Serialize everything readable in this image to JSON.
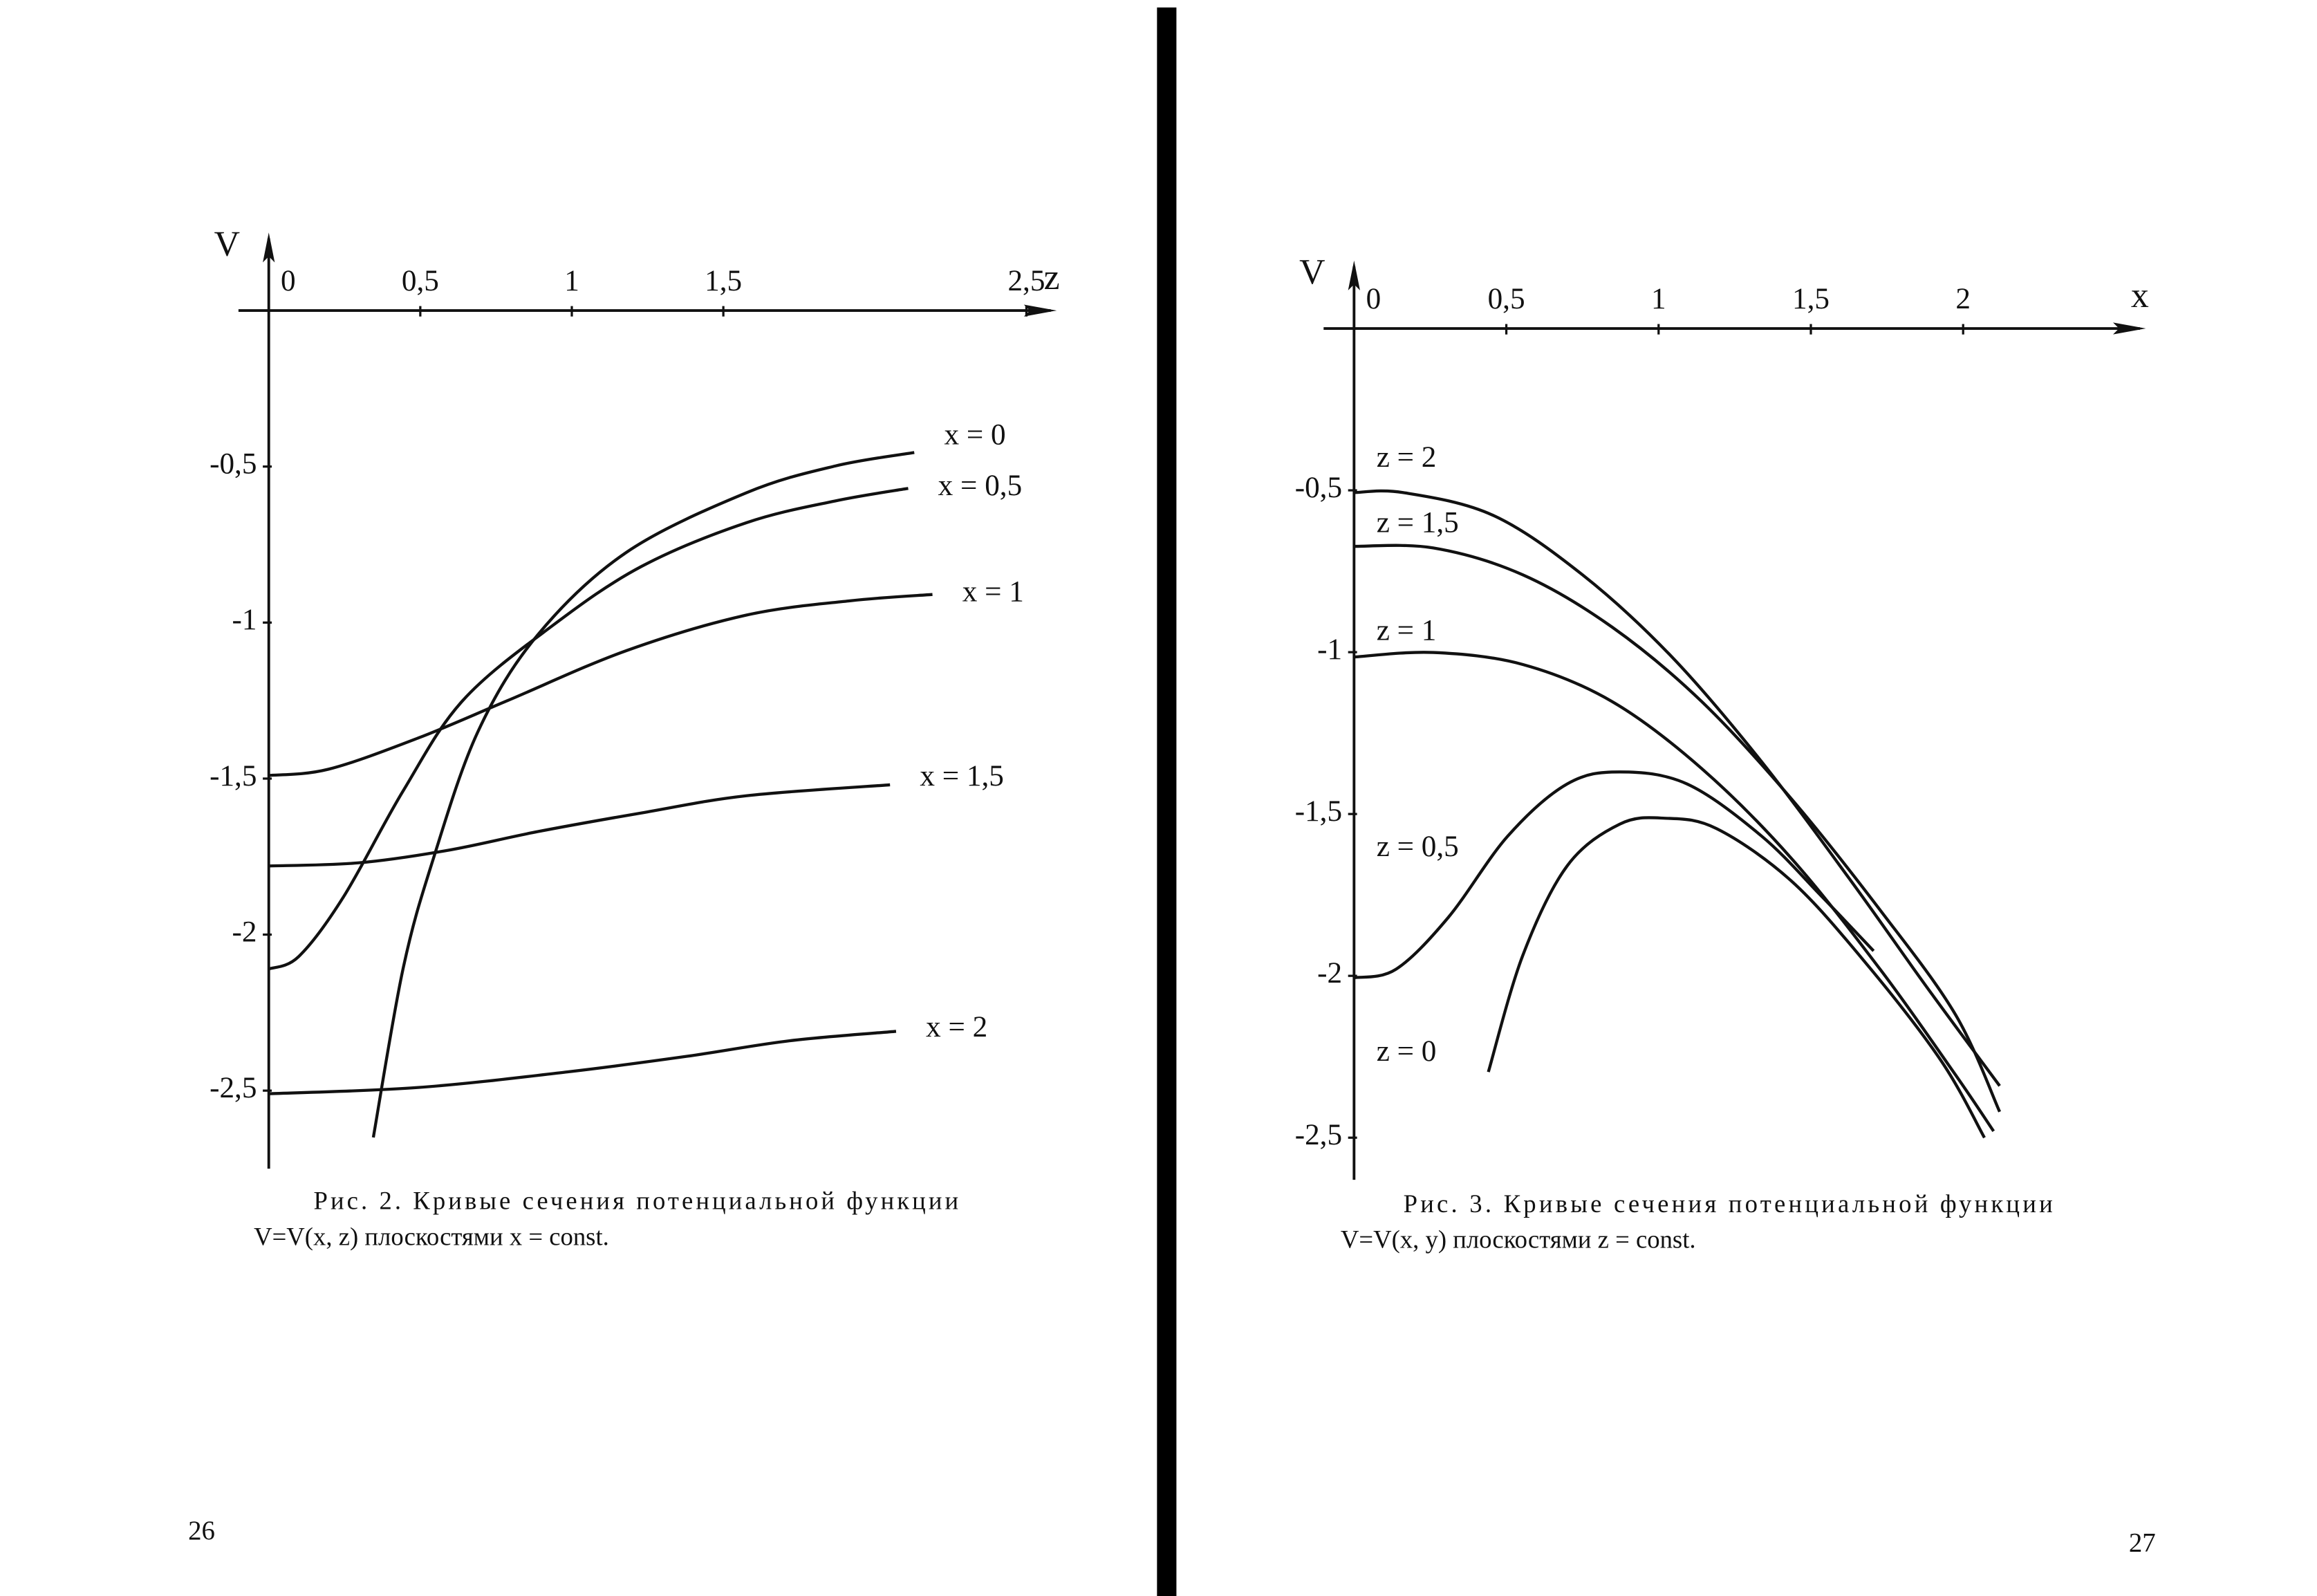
{
  "chart_data": [
    {
      "type": "line",
      "x_label": "z",
      "y_label": "V",
      "xlim": [
        -0.1,
        2.6
      ],
      "ylim": [
        -2.75,
        0.25
      ],
      "xticks": [
        0,
        {
          "value": 0.5,
          "label": "0,5"
        },
        1,
        {
          "value": 1.5,
          "label": "1,5"
        },
        {
          "value": 2.5,
          "label": "2,5"
        }
      ],
      "yticks": [
        {
          "value": -0.5,
          "label": "-0,5"
        },
        -1,
        {
          "value": -1.5,
          "label": "-1,5"
        },
        -2,
        {
          "value": -2.5,
          "label": "-2,5"
        }
      ],
      "color": "#111",
      "series": [
        {
          "name": "x = 0",
          "x": [
            0.345,
            0.443,
            0.542,
            0.69,
            0.887,
            1.18,
            1.576,
            1.87,
            2.13
          ],
          "values": [
            -2.65,
            -2.11,
            -1.76,
            -1.35,
            -1.04,
            -0.775,
            -0.584,
            -0.498,
            -0.455
          ]
        },
        {
          "name": "x = 0,5",
          "x": [
            0,
            0.099,
            0.246,
            0.443,
            0.64,
            0.936,
            1.23,
            1.576,
            1.87,
            2.11
          ],
          "values": [
            -2.11,
            -2.07,
            -1.88,
            -1.54,
            -1.25,
            -1.01,
            -0.82,
            -0.68,
            -0.61,
            -0.57
          ]
        },
        {
          "name": "x = 1",
          "x": [
            0,
            0.197,
            0.493,
            0.788,
            1.18,
            1.576,
            1.92,
            2.19
          ],
          "values": [
            -1.49,
            -1.47,
            -1.37,
            -1.25,
            -1.09,
            -0.976,
            -0.93,
            -0.91
          ]
        },
        {
          "name": "x = 1,5",
          "x": [
            0,
            0.296,
            0.59,
            0.887,
            1.23,
            1.576,
            2.05
          ],
          "values": [
            -1.78,
            -1.77,
            -1.73,
            -1.67,
            -1.61,
            -1.555,
            -1.52
          ]
        },
        {
          "name": "x = 2",
          "x": [
            0,
            0.493,
            0.985,
            1.38,
            1.72,
            2.07
          ],
          "values": [
            -2.51,
            -2.49,
            -2.44,
            -2.39,
            -2.34,
            -2.31
          ]
        }
      ],
      "caption": [
        "Рис. 2. Кривые сечения потенциальной функции",
        "V=V(x, z) плоскостями x = const."
      ]
    },
    {
      "type": "line",
      "x_label": "x",
      "y_label": "V",
      "xlim": [
        -0.1,
        2.6
      ],
      "ylim": [
        -2.63,
        0.21
      ],
      "xticks": [
        0,
        {
          "value": 0.5,
          "label": "0,5"
        },
        1,
        {
          "value": 1.5,
          "label": "1,5"
        },
        2
      ],
      "yticks": [
        {
          "value": -0.5,
          "label": "-0,5"
        },
        -1,
        {
          "value": -1.5,
          "label": "-1,5"
        },
        -2,
        {
          "value": -2.5,
          "label": "-2,5"
        }
      ],
      "color": "#111",
      "series": [
        {
          "name": "z = 2",
          "x": [
            0,
            0.162,
            0.456,
            0.75,
            1.044,
            1.338,
            1.632,
            1.877,
            2.12
          ],
          "values": [
            -0.507,
            -0.507,
            -0.577,
            -0.761,
            -1.015,
            -1.338,
            -1.707,
            -2.03,
            -2.34
          ]
        },
        {
          "name": "z = 1,5",
          "x": [
            0,
            0.26,
            0.554,
            0.848,
            1.142,
            1.436,
            1.73,
            1.975,
            2.12
          ],
          "values": [
            -0.673,
            -0.678,
            -0.761,
            -0.923,
            -1.153,
            -1.453,
            -1.8,
            -2.12,
            -2.42
          ]
        },
        {
          "name": "z = 1",
          "x": [
            0,
            0.26,
            0.554,
            0.848,
            1.142,
            1.436,
            1.73,
            1.975,
            2.1
          ],
          "values": [
            -1.015,
            -1.001,
            -1.038,
            -1.153,
            -1.36,
            -1.637,
            -1.983,
            -2.306,
            -2.48
          ]
        },
        {
          "name": "z = 0,5",
          "x": [
            0,
            0.137,
            0.309,
            0.505,
            0.7,
            0.873,
            1.093,
            1.338,
            1.534,
            1.706
          ],
          "values": [
            -2.006,
            -1.98,
            -1.82,
            -1.568,
            -1.407,
            -1.37,
            -1.407,
            -1.568,
            -1.753,
            -1.923
          ]
        },
        {
          "name": "z = 0",
          "x": [
            0.441,
            0.554,
            0.7,
            0.873,
            1.02,
            1.19,
            1.436,
            1.68,
            1.926,
            2.07
          ],
          "values": [
            -2.297,
            -1.937,
            -1.66,
            -1.531,
            -1.513,
            -1.545,
            -1.707,
            -1.96,
            -2.26,
            -2.5
          ]
        }
      ],
      "caption": [
        "Рис. 3. Кривые сечения потенциальной функции",
        "V=V(x, y) плоскостями z = const."
      ]
    }
  ],
  "page_numbers": [
    "26",
    "27"
  ]
}
